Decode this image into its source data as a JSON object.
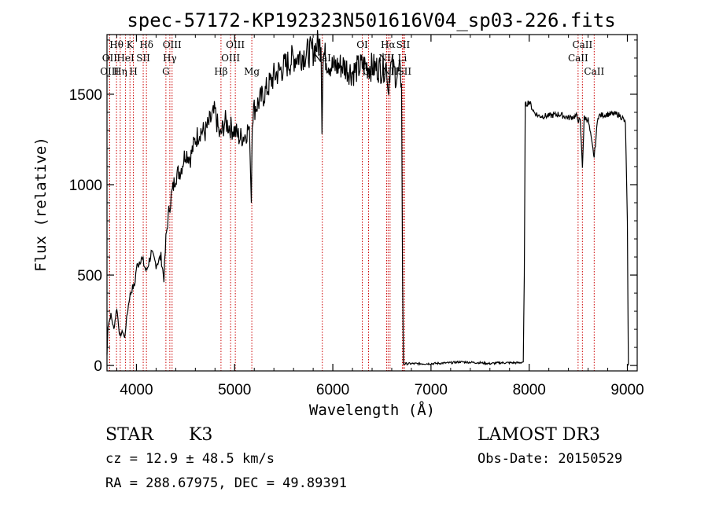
{
  "chart_data": {
    "type": "line",
    "title": "spec-57172-KP192323N501616V04_sp03-226.fits",
    "xlabel": "Wavelength (Å)",
    "ylabel": "Flux (relative)",
    "xlim": [
      3700,
      9100
    ],
    "ylim": [
      -30,
      1830
    ],
    "x_ticks": [
      4000,
      5000,
      6000,
      7000,
      8000,
      9000
    ],
    "x_tick_labels": [
      "4000",
      "5000",
      "6000",
      "7000",
      "8000",
      "9000"
    ],
    "y_ticks": [
      0,
      500,
      1000,
      1500
    ],
    "y_tick_labels": [
      "0",
      "500",
      "1000",
      "1500"
    ],
    "grid": false,
    "series": [
      {
        "name": "spectrum",
        "x": [
          3700,
          3710,
          3740,
          3770,
          3800,
          3830,
          3860,
          3880,
          3900,
          3930,
          3960,
          3980,
          4000,
          4050,
          4100,
          4150,
          4200,
          4250,
          4280,
          4300,
          4330,
          4360,
          4400,
          4450,
          4500,
          4550,
          4600,
          4650,
          4700,
          4750,
          4800,
          4850,
          4900,
          4950,
          5000,
          5050,
          5100,
          5150,
          5170,
          5180,
          5200,
          5300,
          5400,
          5500,
          5600,
          5700,
          5800,
          5850,
          5880,
          5890,
          5900,
          5910,
          5950,
          6000,
          6100,
          6200,
          6300,
          6400,
          6500,
          6550,
          6563,
          6580,
          6600,
          6650,
          6680,
          6700,
          6710,
          6720,
          7000,
          7200,
          7300,
          7500,
          7600,
          7700,
          7900,
          7940,
          7950,
          7960,
          8000,
          8050,
          8100,
          8200,
          8300,
          8400,
          8480,
          8498,
          8520,
          8542,
          8560,
          8600,
          8662,
          8700,
          8800,
          8900,
          8950,
          8980,
          9000,
          9010
        ],
        "y": [
          60,
          220,
          280,
          200,
          320,
          160,
          190,
          150,
          260,
          380,
          430,
          440,
          540,
          600,
          520,
          620,
          560,
          600,
          480,
          700,
          850,
          950,
          1050,
          1080,
          1180,
          1150,
          1250,
          1300,
          1290,
          1350,
          1400,
          1260,
          1350,
          1320,
          1300,
          1260,
          1270,
          1320,
          900,
          1380,
          1420,
          1500,
          1600,
          1650,
          1700,
          1720,
          1740,
          1780,
          1760,
          1280,
          1700,
          1720,
          1680,
          1650,
          1660,
          1620,
          1660,
          1650,
          1640,
          1660,
          1520,
          1640,
          1650,
          1600,
          1620,
          1560,
          500,
          10,
          10,
          15,
          20,
          15,
          10,
          15,
          15,
          20,
          500,
          1440,
          1460,
          1400,
          1380,
          1380,
          1390,
          1370,
          1380,
          1360,
          1350,
          1100,
          1370,
          1360,
          1150,
          1380,
          1390,
          1390,
          1370,
          1340,
          800,
          0
        ]
      }
    ],
    "line_markers": [
      {
        "label": "Hθ",
        "wavelength": 3797,
        "row": 1
      },
      {
        "label": "OII",
        "wavelength": 3727,
        "row": 2
      },
      {
        "label": "OIII",
        "wavelength": 3726,
        "row": 3
      },
      {
        "label": "K",
        "wavelength": 3934,
        "row": 1
      },
      {
        "label": "HeI",
        "wavelength": 3889,
        "row": 2
      },
      {
        "label": "Hη",
        "wavelength": 3835,
        "row": 3
      },
      {
        "label": "Hδ",
        "wavelength": 4102,
        "row": 1
      },
      {
        "label": "SII",
        "wavelength": 4069,
        "row": 2
      },
      {
        "label": "H",
        "wavelength": 3969,
        "row": 3
      },
      {
        "label": "OIII",
        "wavelength": 4363,
        "row": 1
      },
      {
        "label": "Hγ",
        "wavelength": 4340,
        "row": 2
      },
      {
        "label": "G",
        "wavelength": 4300,
        "row": 3
      },
      {
        "label": "OIII",
        "wavelength": 5007,
        "row": 1
      },
      {
        "label": "OIII",
        "wavelength": 4959,
        "row": 2
      },
      {
        "label": "Hβ",
        "wavelength": 4861,
        "row": 3
      },
      {
        "label": "Mg",
        "wavelength": 5175,
        "row": 3
      },
      {
        "label": "NaI",
        "wavelength": 5893,
        "row": 2
      },
      {
        "label": "OI",
        "wavelength": 6300,
        "row": 1
      },
      {
        "label": "OI",
        "wavelength": 6364,
        "row": 3
      },
      {
        "label": "Hα",
        "wavelength": 6563,
        "row": 1
      },
      {
        "label": "NII",
        "wavelength": 6548,
        "row": 2
      },
      {
        "label": "NII",
        "wavelength": 6583,
        "row": 3
      },
      {
        "label": "SII",
        "wavelength": 6716,
        "row": 1
      },
      {
        "label": "Li",
        "wavelength": 6708,
        "row": 2
      },
      {
        "label": "SII",
        "wavelength": 6731,
        "row": 3
      },
      {
        "label": "CaII",
        "wavelength": 8542,
        "row": 1
      },
      {
        "label": "CaII",
        "wavelength": 8498,
        "row": 2
      },
      {
        "label": "CaII",
        "wavelength": 8662,
        "row": 3
      }
    ],
    "marker_color": "#cc0000",
    "line_color": "#000000"
  },
  "info": {
    "class_label": "STAR",
    "subclass_label": "K3",
    "survey": "LAMOST DR3",
    "cz": "cz = 12.9 ± 48.5 km/s",
    "obs_date": "Obs-Date: 20150529",
    "coords": "RA = 288.67975, DEC =  49.89391"
  }
}
